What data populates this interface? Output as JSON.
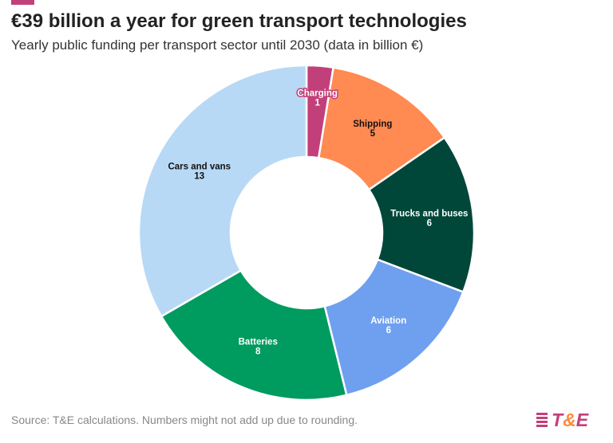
{
  "header": {
    "title": "€39 billion a year for green transport technologies",
    "subtitle": "Yearly public funding per transport sector until 2030 (data in billion €)",
    "accent_color": "#c2407a"
  },
  "chart_data": {
    "type": "pie",
    "variant": "donut",
    "title": "€39 billion a year for green transport technologies",
    "unit": "billion €",
    "categories": [
      "Charging",
      "Shipping",
      "Trucks and buses",
      "Aviation",
      "Batteries",
      "Cars and vans"
    ],
    "values": [
      1,
      5,
      6,
      6,
      8,
      13
    ],
    "colors": [
      "#c2407a",
      "#ff8a52",
      "#00473a",
      "#6fa0f0",
      "#009b5f",
      "#b8d9f5"
    ],
    "label_colors": [
      "#ffffff",
      "#111111",
      "#ffffff",
      "#ffffff",
      "#ffffff",
      "#111111"
    ],
    "start": "top",
    "direction": "clockwise"
  },
  "footer": {
    "source": "Source: T&E calculations. Numbers might not add up due to rounding.",
    "logo_text": "T&E"
  }
}
